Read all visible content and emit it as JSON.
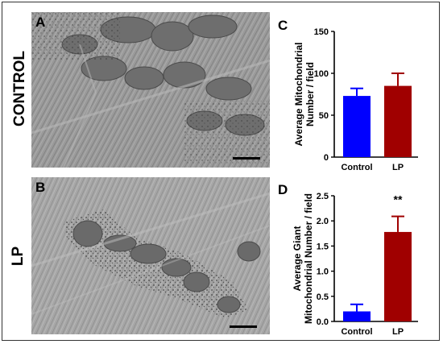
{
  "figure": {
    "row_labels": {
      "top": "CONTROL",
      "bottom": "LP"
    },
    "panel_letters": {
      "a": "A",
      "b": "B",
      "c": "C",
      "d": "D"
    }
  },
  "chart_data": [
    {
      "panel": "C",
      "type": "bar",
      "categories": [
        "Control",
        "LP"
      ],
      "values": [
        73,
        85
      ],
      "errors": [
        9,
        15
      ],
      "colors": [
        "#0000ff",
        "#a00000"
      ],
      "ylabel": "Average Mitochondrial Number / field",
      "ylim": [
        0,
        150
      ],
      "yticks": [
        0,
        50,
        100,
        150
      ],
      "ytick_labels": [
        "0",
        "50",
        "100",
        "150"
      ],
      "annotations": []
    },
    {
      "panel": "D",
      "type": "bar",
      "categories": [
        "Control",
        "LP"
      ],
      "values": [
        0.2,
        1.78
      ],
      "errors": [
        0.14,
        0.31
      ],
      "colors": [
        "#0000ff",
        "#a00000"
      ],
      "ylabel": "Average Giant Mitochondrial Number / field",
      "ylim": [
        0,
        2.5
      ],
      "yticks": [
        0,
        0.5,
        1.0,
        1.5,
        2.0,
        2.5
      ],
      "ytick_labels": [
        "0.0",
        "0.5",
        "1.0",
        "1.5",
        "2.0",
        "2.5"
      ],
      "annotations": [
        {
          "category": "LP",
          "text": "**"
        }
      ]
    }
  ]
}
